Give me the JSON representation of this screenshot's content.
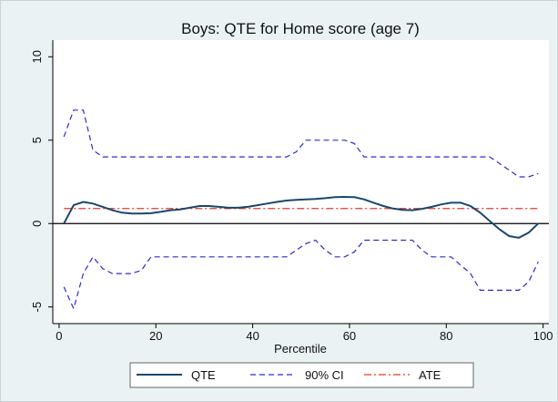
{
  "chart_data": {
    "type": "line",
    "title": "Boys: QTE for Home score (age 7)",
    "x_label": "Percentile",
    "x": [
      1,
      3,
      5,
      7,
      9,
      11,
      13,
      15,
      17,
      19,
      21,
      23,
      25,
      27,
      29,
      31,
      33,
      35,
      37,
      39,
      41,
      43,
      45,
      47,
      49,
      51,
      53,
      55,
      57,
      59,
      61,
      63,
      65,
      67,
      69,
      71,
      73,
      75,
      77,
      79,
      81,
      83,
      85,
      87,
      89,
      91,
      93,
      95,
      97,
      99
    ],
    "series": [
      {
        "name": "QTE",
        "color": "#1a476f",
        "dash": "solid",
        "values": [
          0,
          1.1,
          1.3,
          1.2,
          1.0,
          0.8,
          0.65,
          0.6,
          0.6,
          0.62,
          0.7,
          0.8,
          0.85,
          0.95,
          1.05,
          1.05,
          1.0,
          0.95,
          0.95,
          1.0,
          1.1,
          1.2,
          1.3,
          1.38,
          1.42,
          1.45,
          1.48,
          1.52,
          1.58,
          1.6,
          1.58,
          1.45,
          1.25,
          1.05,
          0.9,
          0.82,
          0.8,
          0.88,
          1.0,
          1.15,
          1.25,
          1.25,
          1.05,
          0.65,
          0.15,
          -0.35,
          -0.75,
          -0.85,
          -0.55,
          0.0
        ]
      },
      {
        "name": "90% CI",
        "color": "#2b2bd6",
        "dash": "dashed",
        "upper": [
          5.2,
          6.8,
          6.8,
          4.4,
          4.0,
          4,
          4,
          4,
          4,
          4,
          4,
          4,
          4,
          4,
          4,
          4,
          4,
          4,
          4,
          4,
          4,
          4,
          4,
          4,
          4.3,
          5.0,
          5,
          5,
          5,
          5,
          4.8,
          4.0,
          4,
          4,
          4,
          4,
          4,
          4,
          4,
          4,
          4,
          4,
          4,
          4,
          4,
          3.6,
          3.2,
          2.8,
          2.8,
          3.0
        ],
        "lower": [
          -3.8,
          -5.1,
          -3.0,
          -2.0,
          -2.7,
          -3.0,
          -3.0,
          -3.0,
          -2.8,
          -2.0,
          -2,
          -2,
          -2,
          -2,
          -2,
          -2,
          -2,
          -2,
          -2,
          -2,
          -2,
          -2,
          -2,
          -2,
          -1.6,
          -1.2,
          -1.0,
          -1.6,
          -2.0,
          -2.0,
          -1.7,
          -1.0,
          -1,
          -1,
          -1,
          -1,
          -1,
          -1.6,
          -2.0,
          -2.0,
          -2.0,
          -2.5,
          -3.0,
          -4.0,
          -4,
          -4,
          -4,
          -4,
          -3.5,
          -2.3
        ]
      }
    ],
    "hlines": [
      {
        "name": "ATE",
        "value": 0.9,
        "color": "#e8382b",
        "dash": "dashdot"
      }
    ],
    "yline": 0,
    "xlim": [
      -1.3,
      101.2
    ],
    "xticks": [
      0,
      20,
      40,
      60,
      80,
      100
    ],
    "ylim": [
      -6,
      11
    ],
    "yticks": [
      -5,
      0,
      5,
      10
    ]
  }
}
